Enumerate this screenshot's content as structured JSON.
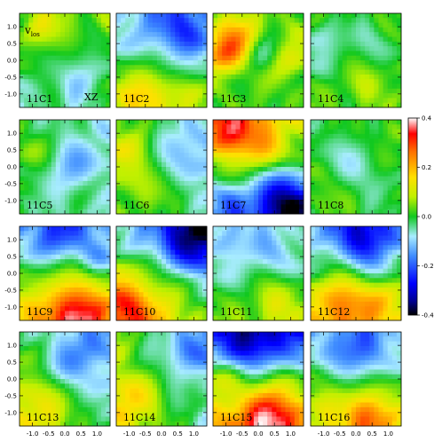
{
  "chart_data": {
    "type": "heatmap",
    "symbol": "v",
    "symbol_subscript": "los",
    "plane_label": "XZ",
    "colorbar": {
      "min": -0.4,
      "max": 0.4,
      "ticks": [
        0.4,
        0.2,
        0.0,
        -0.2,
        -0.4
      ],
      "tick_labels": [
        "0.4",
        "0.2",
        "0.0",
        "-0.2",
        "-0.4"
      ]
    },
    "axes": {
      "xlim": [
        -1.4,
        1.4
      ],
      "ylim": [
        -1.4,
        1.4
      ],
      "x_ticks": [
        -1.0,
        -0.5,
        0.0,
        0.5,
        1.0
      ],
      "x_tick_labels": [
        "-1.0",
        "-0.5",
        "0.0",
        "0.5",
        "1.0"
      ],
      "y_ticks": [
        1.0,
        0.5,
        0.0,
        -0.5,
        -1.0
      ],
      "y_tick_labels": [
        "1.0",
        "0.5",
        "0.0",
        "-0.5",
        "-1.0"
      ]
    },
    "grid_rows": 4,
    "grid_cols": 4,
    "panels": [
      {
        "label": "11C1",
        "row": 0,
        "col": 0,
        "base": 0.0,
        "gx": 0.02,
        "gy": 0.02,
        "blobs": [
          [
            -0.7,
            0.9,
            0.6,
            0.1
          ],
          [
            0.4,
            -0.6,
            0.5,
            -0.08
          ],
          [
            0.8,
            0.3,
            0.4,
            -0.06
          ]
        ]
      },
      {
        "label": "11C2",
        "row": 0,
        "col": 1,
        "base": -0.02,
        "gx": 0.0,
        "gy": -0.06,
        "blobs": [
          [
            0.6,
            0.8,
            0.7,
            -0.16
          ],
          [
            -0.6,
            -1.0,
            0.5,
            0.14
          ],
          [
            0.5,
            -0.9,
            0.4,
            0.06
          ]
        ]
      },
      {
        "label": "11C3",
        "row": 0,
        "col": 2,
        "base": 0.02,
        "gx": 0.0,
        "gy": 0.0,
        "blobs": [
          [
            -1.0,
            0.3,
            0.5,
            0.24
          ],
          [
            0.1,
            0.2,
            0.4,
            -0.14
          ],
          [
            0.9,
            0.2,
            0.5,
            0.1
          ],
          [
            -0.5,
            0.9,
            0.5,
            0.1
          ]
        ]
      },
      {
        "label": "11C4",
        "row": 0,
        "col": 3,
        "base": 0.02,
        "gx": 0.0,
        "gy": 0.0,
        "blobs": [
          [
            -1.0,
            0.5,
            0.5,
            -0.1
          ],
          [
            0.5,
            0.6,
            0.5,
            -0.06
          ],
          [
            0.3,
            -0.8,
            0.4,
            0.06
          ]
        ]
      },
      {
        "label": "11C5",
        "row": 1,
        "col": 0,
        "base": -0.04,
        "gx": -0.02,
        "gy": 0.0,
        "blobs": [
          [
            -1.0,
            0.5,
            0.5,
            0.06
          ],
          [
            0.3,
            0.0,
            0.6,
            -0.06
          ],
          [
            1.0,
            -0.8,
            0.4,
            0.04
          ]
        ]
      },
      {
        "label": "11C6",
        "row": 1,
        "col": 1,
        "base": -0.02,
        "gx": -0.04,
        "gy": 0.0,
        "blobs": [
          [
            -0.8,
            0.2,
            0.6,
            0.1
          ],
          [
            0.6,
            0.5,
            0.5,
            -0.1
          ],
          [
            0.3,
            -0.9,
            0.5,
            0.06
          ]
        ]
      },
      {
        "label": "11C7",
        "row": 1,
        "col": 2,
        "base": 0.0,
        "gx": 0.0,
        "gy": 0.1,
        "blobs": [
          [
            -0.8,
            1.0,
            0.6,
            0.26
          ],
          [
            0.9,
            -1.1,
            0.6,
            -0.3
          ],
          [
            0.2,
            0.4,
            0.4,
            0.1
          ],
          [
            -0.8,
            -1.0,
            0.4,
            -0.08
          ]
        ]
      },
      {
        "label": "11C8",
        "row": 1,
        "col": 3,
        "base": 0.0,
        "gx": 0.0,
        "gy": 0.0,
        "blobs": [
          [
            0.0,
            0.1,
            0.6,
            -0.08
          ],
          [
            -0.9,
            -0.9,
            0.4,
            0.06
          ],
          [
            0.9,
            0.9,
            0.4,
            0.06
          ]
        ]
      },
      {
        "label": "11C9",
        "row": 2,
        "col": 0,
        "base": 0.02,
        "gx": 0.0,
        "gy": -0.12,
        "blobs": [
          [
            -0.2,
            1.0,
            0.5,
            -0.12
          ],
          [
            0.4,
            -1.1,
            0.6,
            0.22
          ],
          [
            1.0,
            0.4,
            0.4,
            -0.08
          ]
        ]
      },
      {
        "label": "11C10",
        "row": 2,
        "col": 1,
        "base": 0.0,
        "gx": -0.06,
        "gy": -0.1,
        "blobs": [
          [
            1.0,
            1.1,
            0.7,
            -0.22
          ],
          [
            -0.9,
            -0.9,
            0.6,
            0.16
          ],
          [
            -0.6,
            0.8,
            0.4,
            -0.06
          ]
        ]
      },
      {
        "label": "11C11",
        "row": 2,
        "col": 2,
        "base": -0.02,
        "gx": 0.0,
        "gy": -0.04,
        "blobs": [
          [
            -0.8,
            0.8,
            0.5,
            -0.08
          ],
          [
            0.6,
            -0.9,
            0.5,
            0.1
          ],
          [
            0.6,
            0.6,
            0.4,
            -0.06
          ]
        ]
      },
      {
        "label": "11C12",
        "row": 2,
        "col": 3,
        "base": 0.0,
        "gx": 0.0,
        "gy": -0.1,
        "blobs": [
          [
            0.3,
            1.0,
            0.6,
            -0.2
          ],
          [
            -0.3,
            -0.8,
            0.6,
            0.18
          ],
          [
            1.0,
            -0.8,
            0.4,
            0.06
          ]
        ]
      },
      {
        "label": "11C13",
        "row": 3,
        "col": 0,
        "base": -0.02,
        "gx": -0.04,
        "gy": -0.04,
        "blobs": [
          [
            -0.8,
            -0.8,
            0.6,
            0.1
          ],
          [
            0.6,
            0.7,
            0.5,
            -0.1
          ],
          [
            0.0,
            0.3,
            0.4,
            -0.04
          ]
        ]
      },
      {
        "label": "11C14",
        "row": 3,
        "col": 1,
        "base": 0.0,
        "gx": -0.06,
        "gy": -0.02,
        "blobs": [
          [
            -0.9,
            -0.7,
            0.5,
            0.1
          ],
          [
            0.7,
            0.8,
            0.5,
            -0.12
          ],
          [
            0.9,
            -0.4,
            0.3,
            0.06
          ]
        ]
      },
      {
        "label": "11C15",
        "row": 3,
        "col": 2,
        "base": 0.0,
        "gx": -0.02,
        "gy": -0.16,
        "blobs": [
          [
            -0.3,
            1.0,
            0.6,
            -0.18
          ],
          [
            0.5,
            -1.0,
            0.6,
            0.22
          ],
          [
            -0.9,
            0.2,
            0.4,
            0.06
          ]
        ]
      },
      {
        "label": "11C16",
        "row": 3,
        "col": 3,
        "base": 0.0,
        "gx": 0.0,
        "gy": -0.08,
        "blobs": [
          [
            0.0,
            0.7,
            0.6,
            -0.14
          ],
          [
            0.4,
            -1.1,
            0.5,
            0.2
          ],
          [
            -0.9,
            -0.5,
            0.4,
            0.06
          ]
        ]
      }
    ]
  }
}
